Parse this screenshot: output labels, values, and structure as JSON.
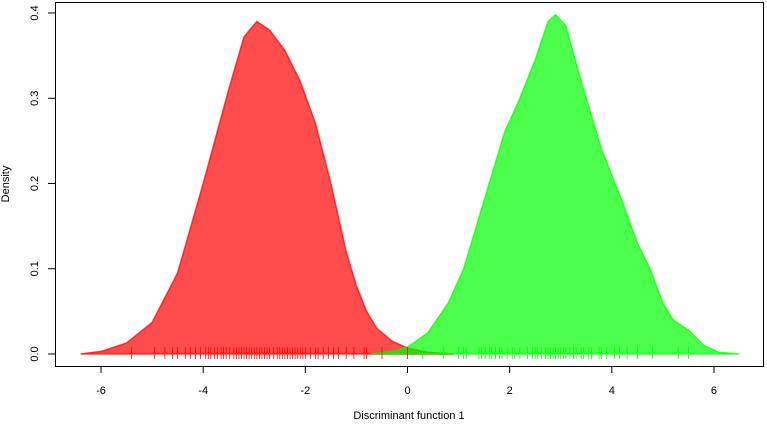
{
  "chart_data": {
    "type": "area",
    "title": "",
    "xlabel": "Discriminant function 1",
    "ylabel": "Density",
    "xlim": [
      -6.9,
      6.9
    ],
    "ylim": [
      -0.014,
      0.413
    ],
    "xticks": [
      -6,
      -4,
      -2,
      0,
      2,
      4,
      6
    ],
    "xtick_labels": [
      "-6",
      "-4",
      "-2",
      "0",
      "2",
      "4",
      "6"
    ],
    "yticks": [
      0.0,
      0.1,
      0.2,
      0.3,
      0.4
    ],
    "ytick_labels": [
      "0.0",
      "0.1",
      "0.2",
      "0.3",
      "0.4"
    ],
    "grid": false,
    "series": [
      {
        "color": "#ff0000",
        "x": [
          -6.4,
          -6.0,
          -5.5,
          -5.0,
          -4.5,
          -4.0,
          -3.5,
          -3.2,
          -2.95,
          -2.7,
          -2.4,
          -2.1,
          -1.8,
          -1.5,
          -1.2,
          -1.0,
          -0.8,
          -0.6,
          -0.3,
          0.0,
          0.4,
          0.9
        ],
        "y": [
          0.0,
          0.003,
          0.013,
          0.037,
          0.095,
          0.2,
          0.31,
          0.372,
          0.39,
          0.38,
          0.356,
          0.32,
          0.27,
          0.2,
          0.12,
          0.08,
          0.05,
          0.03,
          0.015,
          0.007,
          0.002,
          0.0
        ],
        "rug": [
          -5.4,
          -4.95,
          -4.75,
          -4.6,
          -4.5,
          -4.35,
          -4.25,
          -4.15,
          -4.05,
          -3.95,
          -3.9,
          -3.85,
          -3.78,
          -3.72,
          -3.65,
          -3.6,
          -3.55,
          -3.48,
          -3.4,
          -3.35,
          -3.3,
          -3.25,
          -3.2,
          -3.15,
          -3.1,
          -3.05,
          -3.0,
          -2.95,
          -2.9,
          -2.85,
          -2.8,
          -2.75,
          -2.7,
          -2.62,
          -2.55,
          -2.5,
          -2.45,
          -2.4,
          -2.35,
          -2.3,
          -2.25,
          -2.2,
          -2.15,
          -2.1,
          -2.05,
          -2.0,
          -1.9,
          -1.8,
          -1.75,
          -1.65,
          -1.55,
          -1.45,
          -1.35,
          -1.2,
          -1.05,
          -0.85,
          -0.8,
          -0.5,
          0.0
        ]
      },
      {
        "color": "#00ff00",
        "x": [
          -0.7,
          -0.3,
          0.0,
          0.4,
          0.8,
          1.1,
          1.4,
          1.65,
          1.9,
          2.2,
          2.5,
          2.75,
          2.9,
          3.1,
          3.4,
          3.8,
          4.2,
          4.5,
          4.75,
          5.0,
          5.2,
          5.5,
          5.8,
          6.1,
          6.5
        ],
        "y": [
          0.0,
          0.003,
          0.008,
          0.025,
          0.06,
          0.1,
          0.16,
          0.21,
          0.26,
          0.3,
          0.345,
          0.39,
          0.398,
          0.385,
          0.32,
          0.24,
          0.18,
          0.13,
          0.1,
          0.06,
          0.04,
          0.028,
          0.01,
          0.002,
          0.0
        ],
        "rug": [
          0.3,
          0.7,
          1.0,
          1.1,
          1.15,
          1.4,
          1.45,
          1.52,
          1.6,
          1.65,
          1.72,
          1.8,
          1.85,
          1.95,
          2.05,
          2.1,
          2.2,
          2.35,
          2.45,
          2.5,
          2.55,
          2.62,
          2.7,
          2.75,
          2.8,
          2.85,
          2.9,
          2.95,
          3.0,
          3.05,
          3.1,
          3.18,
          3.25,
          3.3,
          3.4,
          3.45,
          3.55,
          3.6,
          3.75,
          3.8,
          3.9,
          4.05,
          4.15,
          4.3,
          4.5,
          4.8,
          5.3,
          5.5
        ]
      }
    ]
  }
}
